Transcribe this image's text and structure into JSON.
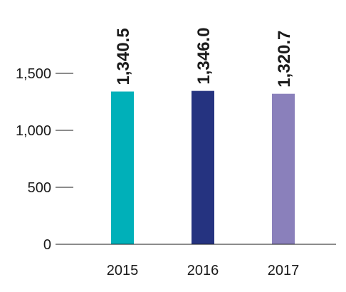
{
  "chart_data": {
    "type": "bar",
    "categories": [
      "2015",
      "2016",
      "2017"
    ],
    "values": [
      1340.5,
      1346.0,
      1320.7
    ],
    "value_labels": [
      "1,340.5",
      "1,346.0",
      "1,320.7"
    ],
    "bar_colors": [
      "#00b0b9",
      "#253380",
      "#8a80bb"
    ],
    "yticks": [
      0,
      500,
      1000,
      1500
    ],
    "ytick_labels": [
      "0",
      "500",
      "1,000",
      "1,500"
    ],
    "ylim": [
      0,
      1750
    ],
    "grid": false,
    "legend": "none",
    "axis_color": "#1a1a1a"
  }
}
